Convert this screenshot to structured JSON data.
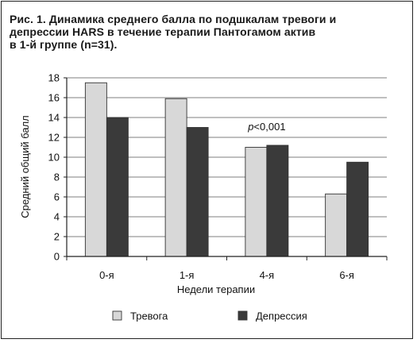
{
  "figure": {
    "title_lines": [
      "Рис. 1. Динамика среднего балла по подшкалам тревоги и",
      "депрессии HARS в течение терапии Пантогамом актив",
      "в 1-й группе (n=31)."
    ]
  },
  "chart_data": {
    "type": "bar",
    "categories": [
      "0-я",
      "1-я",
      "4-я",
      "6-я"
    ],
    "series": [
      {
        "name": "Тревога",
        "values": [
          17.5,
          15.9,
          11.0,
          6.3
        ],
        "color": "#d8d8d8"
      },
      {
        "name": "Депрессия",
        "values": [
          14.0,
          13.0,
          11.2,
          9.5
        ],
        "color": "#3a3a3a"
      }
    ],
    "xlabel": "Недели терапии",
    "ylabel": "Средний общий балл",
    "ylim": [
      0,
      18
    ],
    "yticks": [
      0,
      2,
      4,
      6,
      8,
      10,
      12,
      14,
      16,
      18
    ],
    "grid": true,
    "legend": "bottom",
    "annotation": {
      "text_prefix": "p",
      "text_rest": "<0,001",
      "category": "4-я"
    }
  }
}
